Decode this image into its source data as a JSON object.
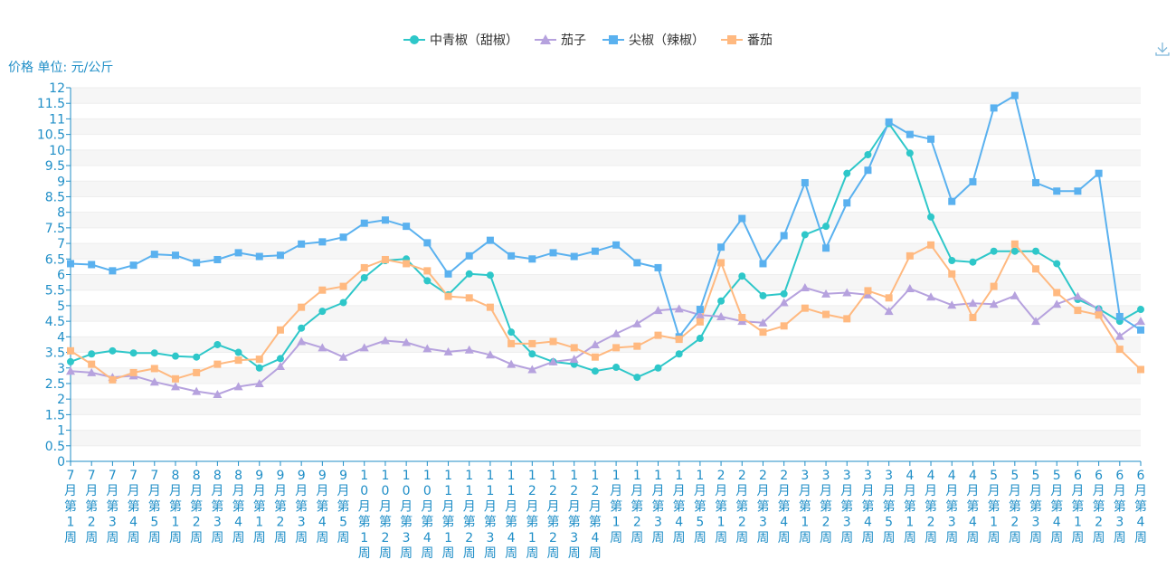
{
  "toolbar": {
    "download_icon": "download-icon"
  },
  "chart_data": {
    "type": "line",
    "ylabel": "价格 单位: 元/公斤",
    "ylim": [
      0,
      12
    ],
    "ytick_step": 0.5,
    "yticks": [
      "0",
      "0.5",
      "1",
      "1.5",
      "2",
      "2.5",
      "3",
      "3.5",
      "4",
      "4.5",
      "5",
      "5.5",
      "6",
      "6.5",
      "7",
      "7.5",
      "8",
      "8.5",
      "9",
      "9.5",
      "10",
      "10.5",
      "11",
      "11.5",
      "12"
    ],
    "grid": true,
    "legend_position": "top-center",
    "categories": [
      "7月第1周",
      "7月第2周",
      "7月第3周",
      "7月第4周",
      "7月第5周",
      "8月第1周",
      "8月第2周",
      "8月第3周",
      "8月第4周",
      "9月第1周",
      "9月第2周",
      "9月第3周",
      "9月第4周",
      "9月第5周",
      "10月第1周",
      "10月第2周",
      "10月第3周",
      "10月第4周",
      "11月第1周",
      "11月第2周",
      "11月第3周",
      "11月第4周",
      "12月第1周",
      "12月第2周",
      "12月第3周",
      "12月第4周",
      "1月第1周",
      "1月第2周",
      "1月第3周",
      "1月第4周",
      "1月第5周",
      "2月第1周",
      "2月第2周",
      "2月第3周",
      "2月第4周",
      "3月第1周",
      "3月第2周",
      "3月第3周",
      "3月第4周",
      "3月第5周",
      "4月第1周",
      "4月第2周",
      "4月第3周",
      "4月第4周",
      "5月第1周",
      "5月第2周",
      "5月第3周",
      "5月第4周",
      "6月第1周",
      "6月第2周",
      "6月第3周",
      "6月第4周"
    ],
    "series": [
      {
        "name": "中青椒（甜椒）",
        "color": "#2ec7c9",
        "marker": "circle",
        "values": [
          3.2,
          3.45,
          3.55,
          3.48,
          3.48,
          3.38,
          3.35,
          3.75,
          3.5,
          3.0,
          3.3,
          4.28,
          4.82,
          5.1,
          5.9,
          6.45,
          6.5,
          5.8,
          5.35,
          6.02,
          5.98,
          4.15,
          3.45,
          3.2,
          3.12,
          2.9,
          3.02,
          2.7,
          3.0,
          3.45,
          3.95,
          5.15,
          5.95,
          5.32,
          5.38,
          7.28,
          7.55,
          9.25,
          9.85,
          10.85,
          9.9,
          7.85,
          6.45,
          6.4,
          6.75,
          6.75,
          6.75,
          6.35,
          5.2,
          4.9,
          4.5,
          4.88
        ]
      },
      {
        "name": "茄子",
        "color": "#b6a2de",
        "marker": "triangle",
        "values": [
          2.9,
          2.85,
          2.7,
          2.75,
          2.55,
          2.4,
          2.25,
          2.15,
          2.4,
          2.5,
          3.05,
          3.85,
          3.65,
          3.35,
          3.65,
          3.88,
          3.82,
          3.62,
          3.52,
          3.58,
          3.42,
          3.12,
          2.95,
          3.2,
          3.28,
          3.75,
          4.1,
          4.42,
          4.85,
          4.9,
          4.7,
          4.65,
          4.5,
          4.45,
          5.1,
          5.58,
          5.38,
          5.42,
          5.35,
          4.82,
          5.55,
          5.28,
          5.02,
          5.08,
          5.05,
          5.32,
          4.5,
          5.05,
          5.3,
          4.88,
          4.02,
          4.5
        ]
      },
      {
        "name": "尖椒（辣椒）",
        "color": "#5ab1ef",
        "marker": "square",
        "values": [
          6.35,
          6.32,
          6.12,
          6.3,
          6.65,
          6.62,
          6.38,
          6.48,
          6.7,
          6.58,
          6.62,
          6.98,
          7.05,
          7.2,
          7.65,
          7.75,
          7.55,
          7.02,
          6.02,
          6.6,
          7.1,
          6.6,
          6.5,
          6.7,
          6.58,
          6.75,
          6.95,
          6.38,
          6.22,
          4.0,
          4.88,
          6.88,
          7.8,
          6.35,
          7.25,
          8.95,
          6.85,
          8.3,
          9.35,
          10.9,
          10.5,
          10.35,
          8.35,
          8.98,
          11.35,
          11.75,
          8.95,
          8.68,
          8.68,
          9.25,
          4.65,
          4.22
        ]
      },
      {
        "name": "番茄",
        "color": "#ffb980",
        "marker": "square",
        "values": [
          3.55,
          3.12,
          2.62,
          2.85,
          2.98,
          2.65,
          2.85,
          3.12,
          3.25,
          3.28,
          4.22,
          4.95,
          5.5,
          5.62,
          6.22,
          6.48,
          6.35,
          6.12,
          5.3,
          5.25,
          4.95,
          3.78,
          3.78,
          3.85,
          3.65,
          3.35,
          3.65,
          3.7,
          4.05,
          3.92,
          4.48,
          6.38,
          4.62,
          4.15,
          4.35,
          4.92,
          4.72,
          4.58,
          5.48,
          5.25,
          6.6,
          6.95,
          6.02,
          4.62,
          5.62,
          6.98,
          6.18,
          5.42,
          4.85,
          4.7,
          3.6,
          2.95
        ]
      }
    ]
  }
}
